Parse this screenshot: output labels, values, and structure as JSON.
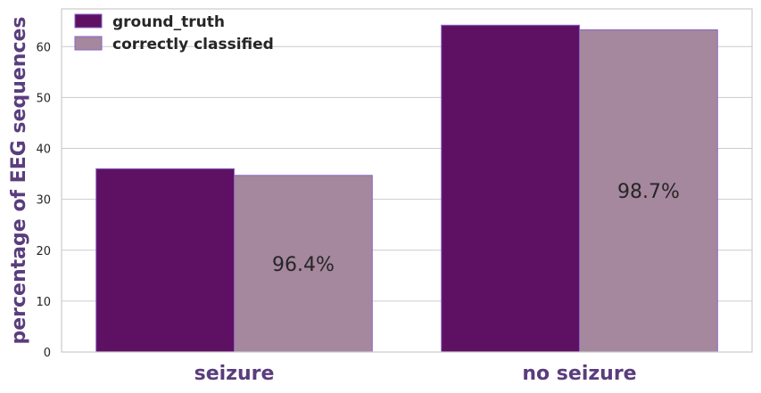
{
  "chart_data": {
    "type": "bar",
    "categories": [
      "seizure",
      "no seizure"
    ],
    "series": [
      {
        "name": "ground_truth",
        "values": [
          36.0,
          64.2
        ],
        "color": "#5e1163"
      },
      {
        "name": "correctly classified",
        "values": [
          34.7,
          63.3
        ],
        "color": "#a5879e"
      }
    ],
    "annotations": [
      {
        "category": "seizure",
        "text": "96.4%"
      },
      {
        "category": "no seizure",
        "text": "98.7%"
      }
    ],
    "xlabel": "",
    "ylabel": "percentage of EEG sequences",
    "ylim": [
      0,
      67.4
    ],
    "yticks": [
      0,
      10,
      20,
      30,
      40,
      50,
      60
    ],
    "grid": "horizontal",
    "legend_position": "top-left",
    "bar_edge_color": "#8a63c6",
    "axes_border_color": "#cccccc"
  }
}
